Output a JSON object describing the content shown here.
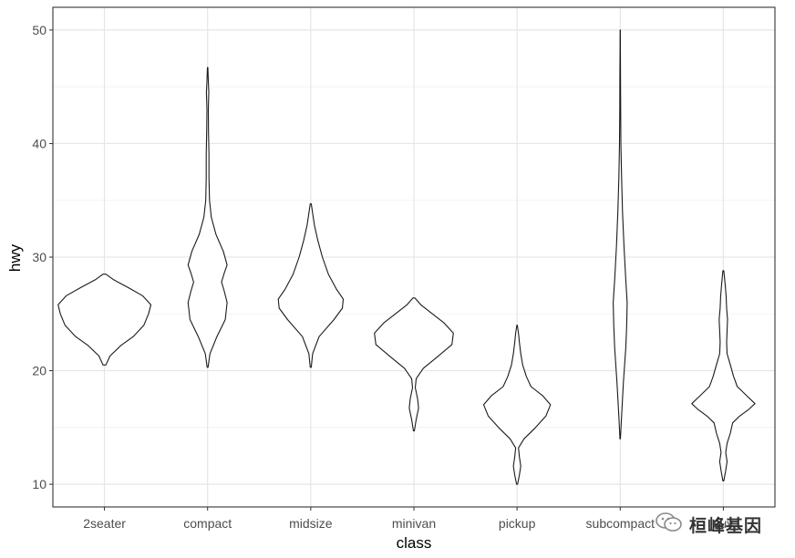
{
  "chart_data": {
    "type": "violin",
    "title": "",
    "xlabel": "class",
    "ylabel": "hwy",
    "categories": [
      "2seater",
      "compact",
      "midsize",
      "minivan",
      "pickup",
      "subcompact",
      "suv"
    ],
    "ylim": [
      8,
      52
    ],
    "yticks": [
      10,
      20,
      30,
      40,
      50
    ],
    "grid": true,
    "violins": [
      {
        "name": "2seater",
        "min": 20.5,
        "max": 28.5,
        "profile": [
          [
            20.5,
            0.03
          ],
          [
            21.3,
            0.12
          ],
          [
            22.2,
            0.35
          ],
          [
            23.0,
            0.62
          ],
          [
            24.0,
            0.85
          ],
          [
            25.0,
            0.95
          ],
          [
            25.8,
            1.0
          ],
          [
            26.6,
            0.82
          ],
          [
            27.3,
            0.52
          ],
          [
            28.0,
            0.2
          ],
          [
            28.5,
            0.03
          ]
        ]
      },
      {
        "name": "compact",
        "min": 20.3,
        "max": 46.7,
        "profile": [
          [
            20.3,
            0.01
          ],
          [
            21.5,
            0.05
          ],
          [
            23.0,
            0.2
          ],
          [
            24.5,
            0.38
          ],
          [
            26.0,
            0.42
          ],
          [
            27.0,
            0.36
          ],
          [
            27.8,
            0.3
          ],
          [
            28.6,
            0.36
          ],
          [
            29.3,
            0.42
          ],
          [
            30.5,
            0.34
          ],
          [
            32.0,
            0.18
          ],
          [
            33.5,
            0.08
          ],
          [
            35.0,
            0.04
          ],
          [
            37.0,
            0.03
          ],
          [
            39.0,
            0.03
          ],
          [
            41.0,
            0.02
          ],
          [
            43.0,
            0.015
          ],
          [
            44.5,
            0.025
          ],
          [
            45.5,
            0.015
          ],
          [
            46.7,
            0.005
          ]
        ]
      },
      {
        "name": "midsize",
        "min": 20.3,
        "max": 34.7,
        "profile": [
          [
            20.3,
            0.01
          ],
          [
            21.5,
            0.04
          ],
          [
            23.0,
            0.18
          ],
          [
            24.5,
            0.5
          ],
          [
            25.5,
            0.68
          ],
          [
            26.3,
            0.7
          ],
          [
            27.2,
            0.55
          ],
          [
            28.5,
            0.38
          ],
          [
            30.0,
            0.25
          ],
          [
            31.5,
            0.15
          ],
          [
            32.8,
            0.08
          ],
          [
            33.6,
            0.05
          ],
          [
            34.7,
            0.01
          ]
        ]
      },
      {
        "name": "minivan",
        "min": 14.7,
        "max": 26.4,
        "profile": [
          [
            14.7,
            0.01
          ],
          [
            15.7,
            0.05
          ],
          [
            16.7,
            0.1
          ],
          [
            17.5,
            0.08
          ],
          [
            18.5,
            0.03
          ],
          [
            19.3,
            0.05
          ],
          [
            20.2,
            0.2
          ],
          [
            21.2,
            0.5
          ],
          [
            22.3,
            0.82
          ],
          [
            23.3,
            0.85
          ],
          [
            24.2,
            0.65
          ],
          [
            25.0,
            0.4
          ],
          [
            25.8,
            0.15
          ],
          [
            26.4,
            0.02
          ]
        ]
      },
      {
        "name": "pickup",
        "min": 10.0,
        "max": 24.0,
        "profile": [
          [
            10.0,
            0.01
          ],
          [
            10.8,
            0.05
          ],
          [
            11.6,
            0.08
          ],
          [
            12.4,
            0.05
          ],
          [
            13.2,
            0.03
          ],
          [
            14.0,
            0.15
          ],
          [
            15.0,
            0.4
          ],
          [
            16.0,
            0.62
          ],
          [
            17.0,
            0.72
          ],
          [
            17.8,
            0.55
          ],
          [
            18.6,
            0.3
          ],
          [
            19.5,
            0.2
          ],
          [
            20.5,
            0.12
          ],
          [
            21.5,
            0.08
          ],
          [
            22.5,
            0.05
          ],
          [
            23.3,
            0.03
          ],
          [
            24.0,
            0.005
          ]
        ]
      },
      {
        "name": "subcompact",
        "min": 14.0,
        "max": 50.0,
        "profile": [
          [
            14.0,
            0.005
          ],
          [
            16.0,
            0.03
          ],
          [
            19.0,
            0.07
          ],
          [
            22.0,
            0.12
          ],
          [
            24.0,
            0.14
          ],
          [
            26.0,
            0.15
          ],
          [
            28.0,
            0.12
          ],
          [
            31.0,
            0.08
          ],
          [
            34.0,
            0.05
          ],
          [
            37.0,
            0.03
          ],
          [
            40.0,
            0.015
          ],
          [
            43.0,
            0.01
          ],
          [
            46.0,
            0.007
          ],
          [
            48.0,
            0.004
          ],
          [
            50.0,
            0.002
          ]
        ]
      },
      {
        "name": "suv",
        "min": 10.3,
        "max": 28.8,
        "profile": [
          [
            10.3,
            0.01
          ],
          [
            11.2,
            0.05
          ],
          [
            12.0,
            0.08
          ],
          [
            12.8,
            0.05
          ],
          [
            13.6,
            0.08
          ],
          [
            14.5,
            0.15
          ],
          [
            15.4,
            0.2
          ],
          [
            16.0,
            0.35
          ],
          [
            16.6,
            0.55
          ],
          [
            17.1,
            0.68
          ],
          [
            17.8,
            0.5
          ],
          [
            18.6,
            0.3
          ],
          [
            19.5,
            0.22
          ],
          [
            20.5,
            0.15
          ],
          [
            21.5,
            0.08
          ],
          [
            22.5,
            0.07
          ],
          [
            23.5,
            0.08
          ],
          [
            24.5,
            0.09
          ],
          [
            25.5,
            0.07
          ],
          [
            26.5,
            0.06
          ],
          [
            27.5,
            0.04
          ],
          [
            28.8,
            0.01
          ]
        ]
      }
    ]
  },
  "watermark": {
    "text": "桓峰基因",
    "icon": "wechat-icon"
  }
}
